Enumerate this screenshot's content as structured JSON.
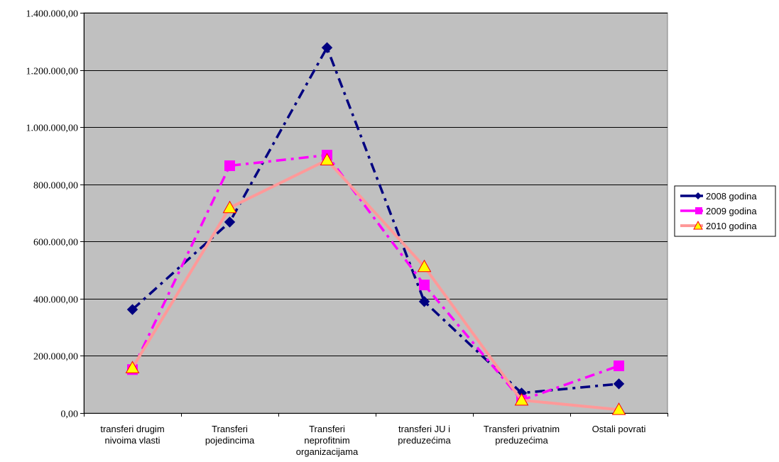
{
  "chart_data": {
    "type": "line",
    "title": "",
    "xlabel": "",
    "ylabel": "",
    "ylim": [
      0,
      1400000
    ],
    "ytick_step": 200000,
    "ytick_labels": [
      "0,00",
      "200.000,00",
      "400.000,00",
      "600.000,00",
      "800.000,00",
      "1.000.000,00",
      "1.200.000,00",
      "1.400.000,00"
    ],
    "grid": "horizontal",
    "plot_background": "#c0c0c0",
    "legend_position": "right",
    "categories": [
      [
        "transferi drugim",
        "nivoima vlasti"
      ],
      [
        "Transferi",
        "pojedincima"
      ],
      [
        "Transferi",
        "neprofitnim",
        "organizacijama"
      ],
      [
        "transferi JU i",
        "preduzećima"
      ],
      [
        "Transferi privatnim",
        "preduzećima"
      ],
      [
        "Ostali povrati"
      ]
    ],
    "series": [
      {
        "name": "2008 godina",
        "color": "#000080",
        "marker": "diamond",
        "line_style": "dashdot",
        "values": [
          362000,
          668000,
          1278000,
          390000,
          70000,
          102000
        ]
      },
      {
        "name": "2009 godina",
        "color": "#ff00ff",
        "marker": "square",
        "line_style": "dashdot",
        "values": [
          152000,
          865000,
          902000,
          448000,
          45000,
          165000
        ]
      },
      {
        "name": "2010 godina",
        "color": "#ff9999",
        "marker": "triangle",
        "marker_fill": "#ffff00",
        "marker_stroke": "#ff0000",
        "line_style": "solid",
        "values": [
          158000,
          718000,
          885000,
          512000,
          45000,
          12000
        ]
      }
    ]
  }
}
